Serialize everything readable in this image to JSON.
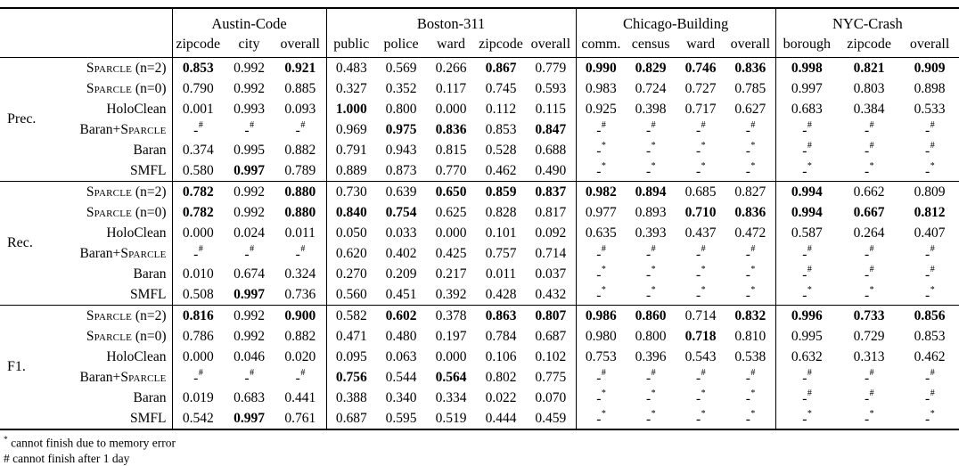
{
  "table": {
    "column_groups": [
      {
        "label": "Austin-Code",
        "columns": [
          "zipcode",
          "city",
          "overall"
        ]
      },
      {
        "label": "Boston-311",
        "columns": [
          "public",
          "police",
          "ward",
          "zipcode",
          "overall"
        ]
      },
      {
        "label": "Chicago-Building",
        "columns": [
          "comm.",
          "census",
          "ward",
          "overall"
        ]
      },
      {
        "label": "NYC-Crash",
        "columns": [
          "borough",
          "zipcode",
          "overall"
        ]
      }
    ],
    "metrics": [
      {
        "label": "Prec.",
        "rows": [
          {
            "method": "Sparcle (n=2)",
            "values": [
              "!0.853",
              "0.992",
              "!0.921",
              "0.483",
              "0.569",
              "0.266",
              "!0.867",
              "0.779",
              "!0.990",
              "!0.829",
              "!0.746",
              "!0.836",
              "!0.998",
              "!0.821",
              "!0.909"
            ]
          },
          {
            "method": "Sparcle (n=0)",
            "values": [
              "0.790",
              "0.992",
              "0.885",
              "0.327",
              "0.352",
              "0.117",
              "0.745",
              "0.593",
              "0.983",
              "0.724",
              "0.727",
              "0.785",
              "0.997",
              "0.803",
              "0.898"
            ]
          },
          {
            "method": "HoloClean",
            "values": [
              "0.001",
              "0.993",
              "0.093",
              "!1.000",
              "0.800",
              "0.000",
              "0.112",
              "0.115",
              "0.925",
              "0.398",
              "0.717",
              "0.627",
              "0.683",
              "0.384",
              "0.533"
            ]
          },
          {
            "method": "Baran+Sparcle",
            "values": [
              "-#",
              "-#",
              "-#",
              "0.969",
              "!0.975",
              "!0.836",
              "0.853",
              "!0.847",
              "-#",
              "-#",
              "-#",
              "-#",
              "-#",
              "-#",
              "-#"
            ]
          },
          {
            "method": "Baran",
            "values": [
              "0.374",
              "0.995",
              "0.882",
              "0.791",
              "0.943",
              "0.815",
              "0.528",
              "0.688",
              "-*",
              "-*",
              "-*",
              "-*",
              "-#",
              "-#",
              "-#"
            ]
          },
          {
            "method": "SMFL",
            "values": [
              "0.580",
              "!0.997",
              "0.789",
              "0.889",
              "0.873",
              "0.770",
              "0.462",
              "0.490",
              "-*",
              "-*",
              "-*",
              "-*",
              "-*",
              "-*",
              "-*"
            ]
          }
        ]
      },
      {
        "label": "Rec.",
        "rows": [
          {
            "method": "Sparcle (n=2)",
            "values": [
              "!0.782",
              "0.992",
              "!0.880",
              "0.730",
              "0.639",
              "!0.650",
              "!0.859",
              "!0.837",
              "!0.982",
              "!0.894",
              "0.685",
              "0.827",
              "!0.994",
              "0.662",
              "0.809"
            ]
          },
          {
            "method": "Sparcle (n=0)",
            "values": [
              "!0.782",
              "0.992",
              "!0.880",
              "!0.840",
              "!0.754",
              "0.625",
              "0.828",
              "0.817",
              "0.977",
              "0.893",
              "!0.710",
              "!0.836",
              "!0.994",
              "!0.667",
              "!0.812"
            ]
          },
          {
            "method": "HoloClean",
            "values": [
              "0.000",
              "0.024",
              "0.011",
              "0.050",
              "0.033",
              "0.000",
              "0.101",
              "0.092",
              "0.635",
              "0.393",
              "0.437",
              "0.472",
              "0.587",
              "0.264",
              "0.407"
            ]
          },
          {
            "method": "Baran+Sparcle",
            "values": [
              "-#",
              "-#",
              "-#",
              "0.620",
              "0.402",
              "0.425",
              "0.757",
              "0.714",
              "-#",
              "-#",
              "-#",
              "-#",
              "-#",
              "-#",
              "-#"
            ]
          },
          {
            "method": "Baran",
            "values": [
              "0.010",
              "0.674",
              "0.324",
              "0.270",
              "0.209",
              "0.217",
              "0.011",
              "0.037",
              "-*",
              "-*",
              "-*",
              "-*",
              "-#",
              "-#",
              "-#"
            ]
          },
          {
            "method": "SMFL",
            "values": [
              "0.508",
              "!0.997",
              "0.736",
              "0.560",
              "0.451",
              "0.392",
              "0.428",
              "0.432",
              "-*",
              "-*",
              "-*",
              "-*",
              "-*",
              "-*",
              "-*"
            ]
          }
        ]
      },
      {
        "label": "F1.",
        "rows": [
          {
            "method": "Sparcle (n=2)",
            "values": [
              "!0.816",
              "0.992",
              "!0.900",
              "0.582",
              "!0.602",
              "0.378",
              "!0.863",
              "!0.807",
              "!0.986",
              "!0.860",
              "0.714",
              "!0.832",
              "!0.996",
              "!0.733",
              "!0.856"
            ]
          },
          {
            "method": "Sparcle (n=0)",
            "values": [
              "0.786",
              "0.992",
              "0.882",
              "0.471",
              "0.480",
              "0.197",
              "0.784",
              "0.687",
              "0.980",
              "0.800",
              "!0.718",
              "0.810",
              "0.995",
              "0.729",
              "0.853"
            ]
          },
          {
            "method": "HoloClean",
            "values": [
              "0.000",
              "0.046",
              "0.020",
              "0.095",
              "0.063",
              "0.000",
              "0.106",
              "0.102",
              "0.753",
              "0.396",
              "0.543",
              "0.538",
              "0.632",
              "0.313",
              "0.462"
            ]
          },
          {
            "method": "Baran+Sparcle",
            "values": [
              "-#",
              "-#",
              "-#",
              "!0.756",
              "0.544",
              "!0.564",
              "0.802",
              "0.775",
              "-#",
              "-#",
              "-#",
              "-#",
              "-#",
              "-#",
              "-#"
            ]
          },
          {
            "method": "Baran",
            "values": [
              "0.019",
              "0.683",
              "0.441",
              "0.388",
              "0.340",
              "0.334",
              "0.022",
              "0.070",
              "-*",
              "-*",
              "-*",
              "-*",
              "-#",
              "-#",
              "-#"
            ]
          },
          {
            "method": "SMFL",
            "values": [
              "0.542",
              "!0.997",
              "0.761",
              "0.687",
              "0.595",
              "0.519",
              "0.444",
              "0.459",
              "-*",
              "-*",
              "-*",
              "-*",
              "-*",
              "-*",
              "-*"
            ]
          }
        ]
      }
    ],
    "footnotes": [
      {
        "marker": "*",
        "superscript": true,
        "text": "cannot finish due to memory error"
      },
      {
        "marker": "#",
        "superscript": false,
        "text": "cannot finish after 1 day"
      }
    ]
  }
}
